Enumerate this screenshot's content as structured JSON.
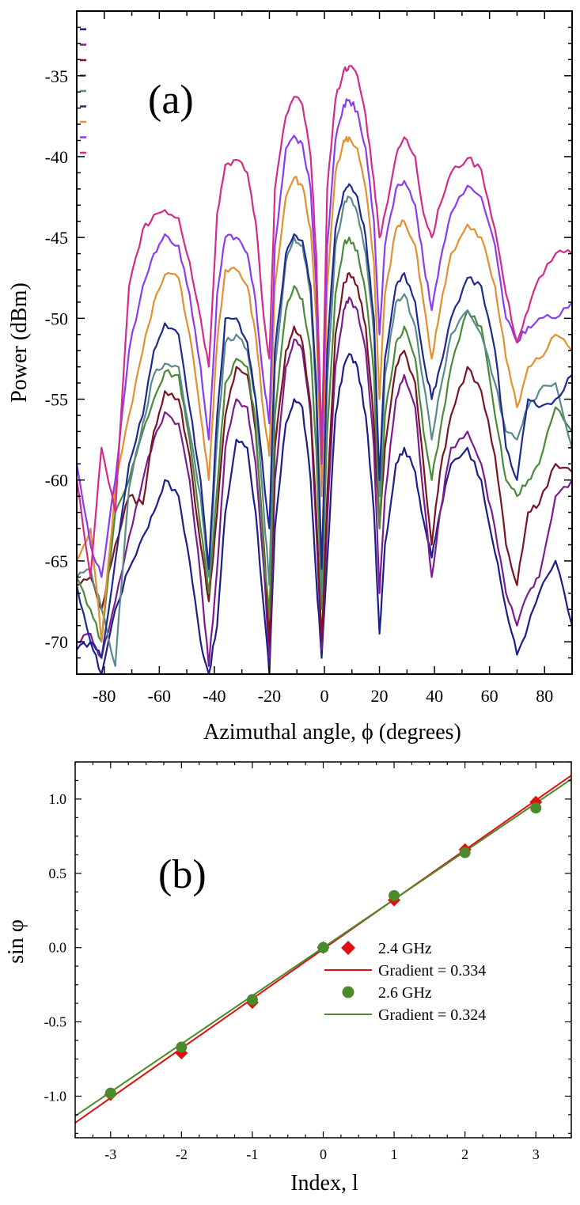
{
  "chart_data": [
    {
      "type": "line",
      "panel_label": "(a)",
      "xlabel": "Azimuthal angle, ϕ (degrees)",
      "ylabel": "Power (dBm)",
      "xlim": [
        -90,
        90
      ],
      "ylim": [
        -72,
        -31
      ],
      "xticks": [
        -80,
        -60,
        -40,
        -20,
        0,
        20,
        40,
        60,
        80
      ],
      "yticks": [
        -35,
        -40,
        -45,
        -50,
        -55,
        -60,
        -65,
        -70
      ],
      "x": [
        -90,
        -85,
        -81,
        -76,
        -71,
        -66,
        -62,
        -58,
        -53,
        -49,
        -45,
        -42,
        -39,
        -36,
        -32,
        -28,
        -25,
        -22,
        -20,
        -18,
        -14,
        -11,
        -8,
        -5,
        -3,
        -1,
        1,
        4,
        7,
        9,
        12,
        15,
        18,
        20,
        22,
        26,
        29,
        33,
        36,
        39,
        42,
        46,
        52,
        57,
        62,
        66,
        70,
        74,
        78,
        84,
        90
      ],
      "series": [
        {
          "name": "s1",
          "color": "#1c1e8a",
          "values": [
            -70.5,
            -70.0,
            -72.0,
            -68.0,
            -65.5,
            -63.5,
            -62.0,
            -60.0,
            -61.0,
            -65.0,
            -70.0,
            -72.0,
            -69.0,
            -62.0,
            -57.5,
            -58.0,
            -62.0,
            -68.0,
            -72.0,
            -63.0,
            -56.5,
            -55.0,
            -55.5,
            -60.0,
            -66.0,
            -71.0,
            -65.0,
            -56.0,
            -53.0,
            -52.2,
            -53.0,
            -56.0,
            -62.0,
            -69.5,
            -64.0,
            -59.0,
            -58.0,
            -59.5,
            -62.5,
            -64.8,
            -62.0,
            -59.0,
            -58.0,
            -60.0,
            -64.5,
            -68.0,
            -70.8,
            -69.0,
            -67.0,
            -65.0,
            -69.0
          ]
        },
        {
          "name": "s2",
          "color": "#7b1c8e",
          "values": [
            -70.0,
            -69.5,
            -71.0,
            -67.5,
            -63.5,
            -60.0,
            -57.5,
            -55.8,
            -56.5,
            -60.0,
            -66.0,
            -71.5,
            -65.5,
            -58.0,
            -55.0,
            -55.5,
            -59.0,
            -65.5,
            -71.0,
            -60.0,
            -53.0,
            -51.3,
            -52.0,
            -56.0,
            -63.0,
            -70.5,
            -62.5,
            -53.0,
            -49.5,
            -48.7,
            -49.5,
            -52.0,
            -58.0,
            -67.0,
            -61.0,
            -55.0,
            -53.5,
            -55.5,
            -61.0,
            -66.0,
            -62.0,
            -58.0,
            -57.0,
            -59.0,
            -63.0,
            -67.0,
            -69.0,
            -67.0,
            -66.0,
            -61.0,
            -60.0
          ]
        },
        {
          "name": "s3",
          "color": "#7a1424",
          "values": [
            -66.5,
            -66.0,
            -68.0,
            -64.0,
            -61.0,
            -61.5,
            -57.0,
            -54.5,
            -55.0,
            -58.5,
            -64.0,
            -67.5,
            -62.0,
            -56.0,
            -53.0,
            -53.5,
            -57.0,
            -64.0,
            -70.0,
            -58.0,
            -52.0,
            -50.5,
            -51.5,
            -55.5,
            -62.0,
            -70.0,
            -61.0,
            -51.0,
            -47.8,
            -47.2,
            -48.0,
            -50.5,
            -56.5,
            -63.0,
            -58.0,
            -53.0,
            -52.0,
            -54.0,
            -59.0,
            -64.0,
            -59.5,
            -56.0,
            -53.0,
            -54.5,
            -58.5,
            -64.0,
            -66.5,
            -62.0,
            -61.5,
            -59.0,
            -59.5
          ]
        },
        {
          "name": "s4",
          "color": "#4a8a3a",
          "values": [
            -66.0,
            -68.0,
            -70.0,
            -62.0,
            -60.0,
            -57.0,
            -55.0,
            -53.3,
            -53.5,
            -57.5,
            -63.0,
            -67.0,
            -60.5,
            -54.0,
            -52.5,
            -53.0,
            -56.5,
            -64.5,
            -68.5,
            -56.0,
            -49.5,
            -48.0,
            -48.8,
            -52.0,
            -58.0,
            -68.0,
            -57.0,
            -48.5,
            -45.5,
            -45.0,
            -45.8,
            -48.5,
            -53.5,
            -63.0,
            -56.0,
            -51.5,
            -50.5,
            -52.5,
            -57.0,
            -60.0,
            -57.0,
            -53.0,
            -49.5,
            -50.5,
            -56.0,
            -60.0,
            -61.0,
            -60.0,
            -59.0,
            -55.5,
            -57.0
          ]
        },
        {
          "name": "s5",
          "color": "#5a8a8c",
          "values": [
            -66.0,
            -65.5,
            -68.0,
            -71.5,
            -60.5,
            -56.5,
            -53.5,
            -52.8,
            -53.0,
            -57.0,
            -61.0,
            -66.0,
            -57.5,
            -51.5,
            -51.0,
            -52.0,
            -55.0,
            -62.0,
            -66.5,
            -53.0,
            -46.5,
            -45.0,
            -45.5,
            -48.5,
            -55.0,
            -67.0,
            -54.0,
            -45.5,
            -43.0,
            -42.5,
            -43.5,
            -46.0,
            -51.0,
            -61.0,
            -53.5,
            -49.0,
            -48.5,
            -50.5,
            -54.0,
            -57.5,
            -54.5,
            -51.0,
            -49.5,
            -51.0,
            -54.0,
            -57.0,
            -57.5,
            -55.5,
            -54.5,
            -54.0,
            -58.0
          ]
        },
        {
          "name": "s6",
          "color": "#1e2a8e",
          "values": [
            -66.5,
            -70.0,
            -71.0,
            -65.0,
            -59.0,
            -56.0,
            -52.0,
            -50.3,
            -51.0,
            -55.5,
            -60.0,
            -65.5,
            -56.0,
            -50.0,
            -50.0,
            -51.5,
            -55.0,
            -60.0,
            -63.0,
            -52.0,
            -46.0,
            -44.8,
            -45.2,
            -48.0,
            -54.0,
            -65.5,
            -52.0,
            -44.5,
            -42.2,
            -41.7,
            -42.5,
            -45.0,
            -50.0,
            -60.0,
            -52.5,
            -48.0,
            -47.2,
            -49.0,
            -52.5,
            -55.0,
            -53.0,
            -50.0,
            -47.5,
            -48.0,
            -52.0,
            -58.0,
            -60.0,
            -55.0,
            -55.5,
            -55.0,
            -53.5
          ]
        },
        {
          "name": "s7",
          "color": "#e39030",
          "values": [
            -65.0,
            -63.0,
            -70.0,
            -60.5,
            -56.0,
            -52.0,
            -49.0,
            -47.3,
            -47.5,
            -51.0,
            -56.0,
            -60.0,
            -51.5,
            -47.0,
            -47.0,
            -48.0,
            -51.0,
            -56.0,
            -58.5,
            -48.0,
            -42.5,
            -41.3,
            -41.8,
            -44.5,
            -50.0,
            -61.0,
            -48.0,
            -41.0,
            -39.0,
            -38.8,
            -39.5,
            -42.0,
            -46.5,
            -55.0,
            -48.5,
            -44.5,
            -44.0,
            -45.5,
            -49.0,
            -52.5,
            -49.5,
            -46.0,
            -44.2,
            -45.0,
            -48.0,
            -52.5,
            -55.5,
            -53.0,
            -52.5,
            -51.0,
            -52.0
          ]
        },
        {
          "name": "s8",
          "color": "#8a3cf0",
          "values": [
            -59.0,
            -64.0,
            -66.0,
            -60.0,
            -52.0,
            -48.0,
            -46.0,
            -44.8,
            -45.5,
            -48.5,
            -53.0,
            -57.5,
            -48.5,
            -45.0,
            -45.0,
            -46.0,
            -49.0,
            -54.0,
            -56.5,
            -45.5,
            -39.5,
            -38.7,
            -39.2,
            -42.0,
            -48.0,
            -59.0,
            -45.5,
            -39.0,
            -36.8,
            -36.5,
            -37.2,
            -39.5,
            -44.0,
            -51.0,
            -45.5,
            -42.0,
            -41.5,
            -43.0,
            -46.5,
            -49.5,
            -46.5,
            -43.5,
            -41.8,
            -42.5,
            -45.5,
            -50.0,
            -51.5,
            -50.5,
            -50.0,
            -50.0,
            -49.0
          ]
        },
        {
          "name": "s9",
          "color": "#d42a8a",
          "values": [
            -60.0,
            -66.0,
            -58.0,
            -62.0,
            -48.0,
            -44.5,
            -43.6,
            -43.3,
            -43.8,
            -46.5,
            -50.0,
            -53.0,
            -43.5,
            -40.5,
            -40.2,
            -41.0,
            -44.0,
            -50.0,
            -52.5,
            -42.0,
            -37.5,
            -36.3,
            -36.8,
            -40.0,
            -46.0,
            -58.0,
            -42.0,
            -36.5,
            -34.7,
            -34.4,
            -35.0,
            -37.5,
            -41.5,
            -45.0,
            -43.5,
            -40.0,
            -38.8,
            -40.0,
            -43.5,
            -45.0,
            -43.0,
            -41.0,
            -40.1,
            -40.8,
            -44.5,
            -48.5,
            -51.5,
            -49.5,
            -47.5,
            -46.0,
            -46.0
          ]
        }
      ],
      "legend": [
        "",
        "",
        "",
        "",
        "",
        "",
        "",
        "",
        ""
      ]
    },
    {
      "type": "scatter",
      "panel_label": "(b)",
      "xlabel": "Index, l",
      "ylabel": "sin φ",
      "xlim": [
        -3.5,
        3.5
      ],
      "ylim": [
        -1.28,
        1.25
      ],
      "xticks": [
        -3,
        -2,
        -1,
        0,
        1,
        2,
        3
      ],
      "xtick_labels": [
        "-3",
        "-2",
        "-1",
        "0",
        "1",
        "2",
        "3"
      ],
      "yticks": [
        1.0,
        0.5,
        0.0,
        -0.5,
        -1.0
      ],
      "ytick_labels": [
        "1.0",
        "0.5",
        "0.0",
        "-0.5",
        "-1.0"
      ],
      "series": [
        {
          "name": "2.4 GHz",
          "marker": "diamond",
          "color": "#e01010",
          "x": [
            -3,
            -2,
            -1,
            0,
            1,
            2,
            3
          ],
          "values": [
            -0.99,
            -0.71,
            -0.37,
            0.0,
            0.32,
            0.66,
            0.98
          ]
        },
        {
          "name": "2.6 GHz",
          "marker": "circle",
          "color": "#4a8a2a",
          "x": [
            -3,
            -2,
            -1,
            0,
            1,
            2,
            3
          ],
          "values": [
            -0.98,
            -0.67,
            -0.35,
            0.0,
            0.35,
            0.64,
            0.94
          ]
        }
      ],
      "fits": [
        {
          "name": "Gradient = 0.334",
          "color": "#e01010",
          "slope": 0.334,
          "intercept": -0.01
        },
        {
          "name": "Gradient = 0.324",
          "color": "#4a8a2a",
          "slope": 0.324,
          "intercept": 0.0
        }
      ]
    }
  ]
}
